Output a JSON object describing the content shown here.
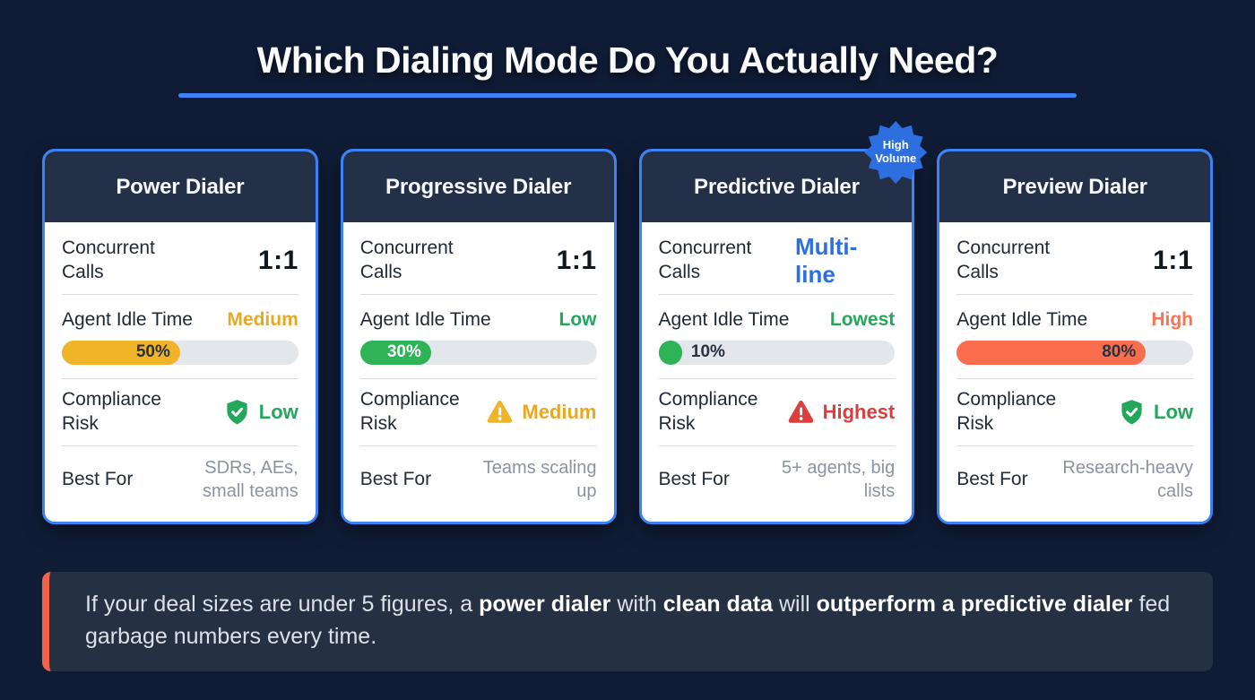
{
  "title": "Which Dialing Mode Do You Actually Need?",
  "colors": {
    "background": "#101C36",
    "accent_blue": "#3B82F6",
    "card_header_bg": "#243048",
    "green": "#23A75B",
    "amber": "#E9A823",
    "orange": "#F97355",
    "red": "#DC3D3D",
    "callout_bg": "#263043",
    "callout_accent": "#F2634A"
  },
  "row_labels": {
    "concurrent": "Concurrent Calls",
    "idle": "Agent Idle Time",
    "compliance": "Compliance Risk",
    "best_for": "Best For"
  },
  "cards": [
    {
      "title": "Power Dialer",
      "badge": null,
      "concurrent": {
        "value": "1:1",
        "style": "ratio",
        "color": "#10181F"
      },
      "idle": {
        "level": "Medium",
        "level_color": "#E9A823",
        "percent": 50,
        "percent_label": "50%",
        "bar_color": "#F0B429",
        "label_position": "inside",
        "label_color": "#27313F"
      },
      "compliance": {
        "level": "Low",
        "level_color": "#23A75B",
        "icon": "shield-check-icon",
        "icon_color": "#23A75B"
      },
      "best_for": "SDRs, AEs, small teams"
    },
    {
      "title": "Progressive Dialer",
      "badge": null,
      "concurrent": {
        "value": "1:1",
        "style": "ratio",
        "color": "#10181F"
      },
      "idle": {
        "level": "Low",
        "level_color": "#23A75B",
        "percent": 30,
        "percent_label": "30%",
        "bar_color": "#2EB457",
        "label_position": "inside",
        "label_color": "#FFFFFF"
      },
      "compliance": {
        "level": "Medium",
        "level_color": "#E9A823",
        "icon": "warning-triangle-icon",
        "icon_color": "#F0B429"
      },
      "best_for": "Teams scaling up"
    },
    {
      "title": "Predictive Dialer",
      "badge": {
        "line1": "High",
        "line2": "Volume"
      },
      "concurrent": {
        "value": "Multi-line",
        "style": "multiline",
        "color": "#2B6FE3"
      },
      "idle": {
        "level": "Lowest",
        "level_color": "#23A75B",
        "percent": 10,
        "percent_label": "10%",
        "bar_color": "#2EB457",
        "label_position": "outside",
        "label_color": "#27313F"
      },
      "compliance": {
        "level": "Highest",
        "level_color": "#DC3D3D",
        "icon": "warning-triangle-icon",
        "icon_color": "#DC3D3D"
      },
      "best_for": "5+ agents, big lists"
    },
    {
      "title": "Preview Dialer",
      "badge": null,
      "concurrent": {
        "value": "1:1",
        "style": "ratio",
        "color": "#10181F"
      },
      "idle": {
        "level": "High",
        "level_color": "#F97355",
        "percent": 80,
        "percent_label": "80%",
        "bar_color": "#FA6E4E",
        "label_position": "inside",
        "label_color": "#27313F"
      },
      "compliance": {
        "level": "Low",
        "level_color": "#23A75B",
        "icon": "shield-check-icon",
        "icon_color": "#23A75B"
      },
      "best_for": "Research-heavy calls"
    }
  ],
  "callout": {
    "segments": [
      {
        "text": "If your deal sizes are under 5 figures, a ",
        "bold": false
      },
      {
        "text": "power dialer",
        "bold": true
      },
      {
        "text": " with ",
        "bold": false
      },
      {
        "text": "clean data",
        "bold": true
      },
      {
        "text": " will ",
        "bold": false
      },
      {
        "text": "outperform a predictive dialer",
        "bold": true
      },
      {
        "text": " fed garbage numbers every time.",
        "bold": false
      }
    ]
  }
}
